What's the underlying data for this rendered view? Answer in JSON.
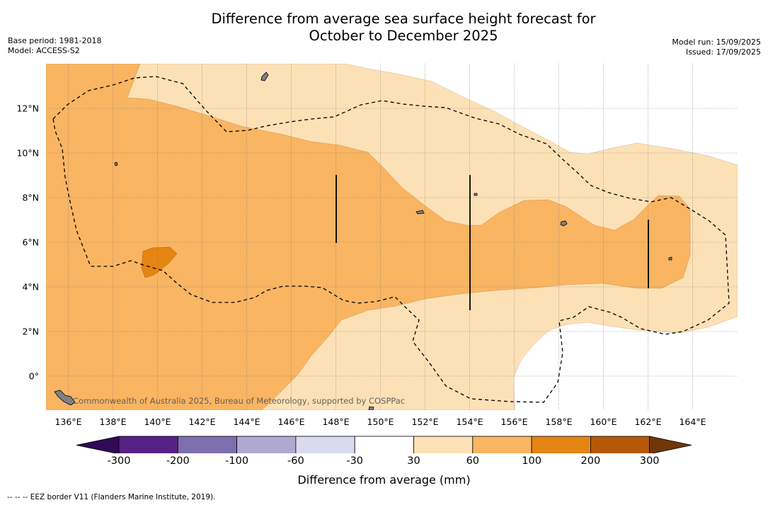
{
  "title_line1": "Difference from average sea surface height forecast for",
  "title_line2": "October to December 2025",
  "meta_left": {
    "base_period": "Base period: 1981-2018",
    "model": "Model: ACCESS-S2"
  },
  "meta_right": {
    "model_run": "Model run: 15/09/2025",
    "issued": "Issued: 17/09/2025"
  },
  "map": {
    "lon_range": [
      135,
      166
    ],
    "lat_range": [
      -1.5,
      14
    ],
    "lon_ticks": [
      "136°E",
      "138°E",
      "140°E",
      "142°E",
      "144°E",
      "146°E",
      "148°E",
      "150°E",
      "152°E",
      "154°E",
      "156°E",
      "158°E",
      "160°E",
      "162°E",
      "164°E"
    ],
    "lat_ticks": [
      "0°",
      "2°N",
      "4°N",
      "6°N",
      "8°N",
      "10°N",
      "12°N"
    ],
    "watermark": "Commonwealth of Australia 2025, Bureau of Meteorology, supported by COSPPac",
    "colors": {
      "band_30_60": "#fde1b6",
      "band_60_100": "#f9b562",
      "band_100_200": "#e58513",
      "land": "#808080"
    }
  },
  "colorbar": {
    "colors": [
      "#300a56",
      "#572285",
      "#7d6fad",
      "#afa9d1",
      "#d9daed",
      "#ffffff",
      "#fde1b6",
      "#f9b562",
      "#e58513",
      "#b55908",
      "#6f3708"
    ],
    "labels": [
      "-300",
      "-200",
      "-100",
      "-60",
      "-30",
      "30",
      "60",
      "100",
      "200",
      "300"
    ],
    "title": "Difference from average (mm)"
  },
  "footnote": "--  --  -- EEZ border V11 (Flanders Marine Institute, 2019)."
}
